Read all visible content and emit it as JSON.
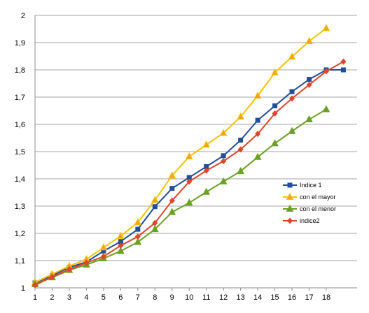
{
  "chart_data": {
    "type": "line",
    "x": [
      1,
      2,
      3,
      4,
      5,
      6,
      7,
      8,
      9,
      10,
      11,
      12,
      13,
      14,
      15,
      16,
      17,
      18,
      19
    ],
    "xticks": [
      "1",
      "2",
      "3",
      "4",
      "5",
      "6",
      "7",
      "8",
      "9",
      "10",
      "11",
      "12",
      "13",
      "14",
      "15",
      "16",
      "17",
      "18"
    ],
    "ylim": [
      1,
      2
    ],
    "yticks": [
      "1",
      "1,1",
      "1,2",
      "1,3",
      "1,4",
      "1,5",
      "1,6",
      "1,7",
      "1,8",
      "1,9",
      "2"
    ],
    "grid": "horizontal",
    "legend_position": "right",
    "series": [
      {
        "name": "Indice 1",
        "color": "#1f4e9a",
        "marker": "square",
        "values": [
          1.018,
          1.045,
          1.075,
          1.095,
          1.135,
          1.17,
          1.215,
          1.298,
          1.365,
          1.405,
          1.445,
          1.485,
          1.542,
          1.615,
          1.668,
          1.72,
          1.765,
          1.8,
          1.8
        ]
      },
      {
        "name": "con el mayor",
        "color": "#f5c400",
        "marker": "triangle",
        "values": [
          1.02,
          1.05,
          1.08,
          1.105,
          1.148,
          1.19,
          1.24,
          1.322,
          1.412,
          1.482,
          1.525,
          1.568,
          1.628,
          1.705,
          1.79,
          1.848,
          1.905,
          1.953,
          null
        ]
      },
      {
        "name": "con el menor",
        "color": "#6aa121",
        "marker": "triangle",
        "values": [
          1.013,
          1.038,
          1.065,
          1.085,
          1.108,
          1.135,
          1.168,
          1.215,
          1.278,
          1.312,
          1.352,
          1.39,
          1.428,
          1.48,
          1.53,
          1.575,
          1.618,
          1.655,
          null
        ]
      },
      {
        "name": "indice2",
        "color": "#e0452a",
        "marker": "diamond",
        "values": [
          1.01,
          1.04,
          1.068,
          1.092,
          1.115,
          1.155,
          1.188,
          1.238,
          1.32,
          1.39,
          1.43,
          1.465,
          1.508,
          1.565,
          1.64,
          1.695,
          1.745,
          1.795,
          1.83
        ]
      }
    ]
  }
}
